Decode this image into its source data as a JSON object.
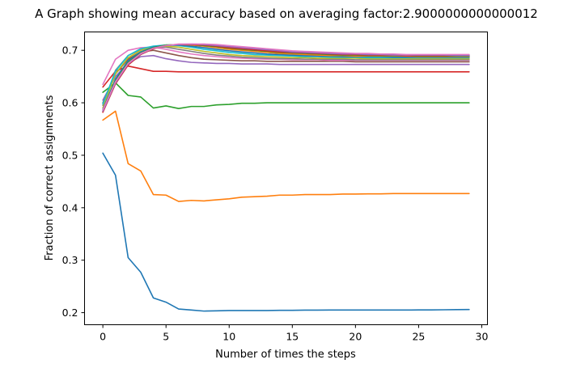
{
  "chart_data": {
    "type": "line",
    "title": "A Graph showing mean accuracy based on averaging factor:2.9000000000000012",
    "xlabel": "Number of times the steps",
    "ylabel": "Fraction of correct assignments",
    "xlim": [
      -1.45,
      30.45
    ],
    "ylim": [
      0.177,
      0.735
    ],
    "xticks": [
      0,
      5,
      10,
      15,
      20,
      25,
      30
    ],
    "yticks": [
      0.2,
      0.3,
      0.4,
      0.5,
      0.6,
      0.7
    ],
    "xtick_labels": [
      "0",
      "5",
      "10",
      "15",
      "20",
      "25",
      "30"
    ],
    "ytick_labels": [
      "0.2",
      "0.3",
      "0.4",
      "0.5",
      "0.6",
      "0.7"
    ],
    "grid": false,
    "legend": "none",
    "x": [
      0,
      1,
      2,
      3,
      4,
      5,
      6,
      7,
      8,
      9,
      10,
      11,
      12,
      13,
      14,
      15,
      16,
      17,
      18,
      19,
      20,
      21,
      22,
      23,
      24,
      25,
      26,
      27,
      28,
      29
    ],
    "series": [
      {
        "color": "#1f77b4",
        "values": [
          0.504,
          0.462,
          0.305,
          0.277,
          0.228,
          0.22,
          0.207,
          0.205,
          0.203,
          0.2035,
          0.204,
          0.204,
          0.204,
          0.204,
          0.2045,
          0.2045,
          0.2048,
          0.2048,
          0.205,
          0.205,
          0.205,
          0.205,
          0.205,
          0.205,
          0.205,
          0.2052,
          0.2053,
          0.2055,
          0.2058,
          0.206
        ]
      },
      {
        "color": "#ff7f0e",
        "values": [
          0.567,
          0.584,
          0.484,
          0.47,
          0.425,
          0.424,
          0.412,
          0.414,
          0.413,
          0.415,
          0.417,
          0.42,
          0.421,
          0.422,
          0.424,
          0.424,
          0.425,
          0.425,
          0.425,
          0.426,
          0.426,
          0.4265,
          0.4265,
          0.427,
          0.427,
          0.427,
          0.427,
          0.427,
          0.427,
          0.427
        ]
      },
      {
        "color": "#2ca02c",
        "values": [
          0.62,
          0.638,
          0.614,
          0.611,
          0.59,
          0.594,
          0.589,
          0.593,
          0.593,
          0.596,
          0.597,
          0.599,
          0.599,
          0.6,
          0.6,
          0.6,
          0.6,
          0.6,
          0.6,
          0.6,
          0.6,
          0.6,
          0.6,
          0.6,
          0.6,
          0.6,
          0.6,
          0.6,
          0.6,
          0.6
        ]
      },
      {
        "color": "#d62728",
        "values": [
          0.63,
          0.66,
          0.67,
          0.665,
          0.66,
          0.66,
          0.659,
          0.659,
          0.659,
          0.659,
          0.659,
          0.659,
          0.659,
          0.659,
          0.659,
          0.659,
          0.659,
          0.659,
          0.659,
          0.659,
          0.659,
          0.659,
          0.659,
          0.659,
          0.659,
          0.659,
          0.659,
          0.659,
          0.659,
          0.659
        ]
      },
      {
        "color": "#9467bd",
        "values": [
          0.605,
          0.65,
          0.676,
          0.688,
          0.69,
          0.684,
          0.68,
          0.677,
          0.676,
          0.675,
          0.675,
          0.674,
          0.674,
          0.674,
          0.673,
          0.673,
          0.673,
          0.673,
          0.673,
          0.673,
          0.673,
          0.673,
          0.673,
          0.673,
          0.673,
          0.673,
          0.673,
          0.673,
          0.673,
          0.673
        ]
      },
      {
        "color": "#8c564b",
        "values": [
          0.6,
          0.655,
          0.683,
          0.697,
          0.7,
          0.695,
          0.69,
          0.686,
          0.683,
          0.682,
          0.681,
          0.68,
          0.68,
          0.679,
          0.679,
          0.679,
          0.679,
          0.679,
          0.679,
          0.679,
          0.678,
          0.678,
          0.678,
          0.678,
          0.678,
          0.678,
          0.678,
          0.678,
          0.678,
          0.678
        ]
      },
      {
        "color": "#e377c2",
        "values": [
          0.635,
          0.683,
          0.7,
          0.705,
          0.706,
          0.702,
          0.697,
          0.693,
          0.69,
          0.688,
          0.686,
          0.685,
          0.684,
          0.683,
          0.683,
          0.682,
          0.682,
          0.682,
          0.681,
          0.681,
          0.681,
          0.681,
          0.681,
          0.681,
          0.681,
          0.681,
          0.681,
          0.681,
          0.681,
          0.681
        ]
      },
      {
        "color": "#7f7f7f",
        "values": [
          0.595,
          0.662,
          0.69,
          0.702,
          0.706,
          0.706,
          0.702,
          0.698,
          0.694,
          0.691,
          0.689,
          0.687,
          0.686,
          0.685,
          0.684,
          0.684,
          0.683,
          0.683,
          0.683,
          0.683,
          0.682,
          0.682,
          0.682,
          0.682,
          0.682,
          0.682,
          0.682,
          0.682,
          0.682,
          0.682
        ]
      },
      {
        "color": "#bcbd22",
        "values": [
          0.59,
          0.655,
          0.686,
          0.7,
          0.707,
          0.708,
          0.706,
          0.702,
          0.698,
          0.695,
          0.692,
          0.69,
          0.689,
          0.688,
          0.687,
          0.686,
          0.686,
          0.685,
          0.685,
          0.685,
          0.685,
          0.684,
          0.684,
          0.684,
          0.684,
          0.684,
          0.684,
          0.684,
          0.684,
          0.684
        ]
      },
      {
        "color": "#17becf",
        "values": [
          0.598,
          0.66,
          0.69,
          0.703,
          0.708,
          0.71,
          0.709,
          0.706,
          0.702,
          0.699,
          0.696,
          0.694,
          0.692,
          0.691,
          0.69,
          0.689,
          0.688,
          0.688,
          0.687,
          0.687,
          0.687,
          0.686,
          0.686,
          0.686,
          0.686,
          0.686,
          0.686,
          0.686,
          0.686,
          0.686
        ]
      },
      {
        "color": "#1f77b4",
        "values": [
          0.587,
          0.645,
          0.68,
          0.697,
          0.706,
          0.71,
          0.71,
          0.708,
          0.705,
          0.702,
          0.699,
          0.697,
          0.695,
          0.693,
          0.692,
          0.691,
          0.69,
          0.689,
          0.689,
          0.688,
          0.688,
          0.688,
          0.688,
          0.687,
          0.687,
          0.687,
          0.687,
          0.687,
          0.687,
          0.687
        ]
      },
      {
        "color": "#ff7f0e",
        "values": [
          0.583,
          0.64,
          0.675,
          0.694,
          0.704,
          0.709,
          0.711,
          0.71,
          0.708,
          0.705,
          0.702,
          0.7,
          0.698,
          0.696,
          0.694,
          0.693,
          0.692,
          0.691,
          0.69,
          0.69,
          0.689,
          0.689,
          0.689,
          0.689,
          0.689,
          0.688,
          0.688,
          0.688,
          0.688,
          0.688
        ]
      },
      {
        "color": "#2ca02c",
        "values": [
          0.585,
          0.642,
          0.677,
          0.695,
          0.705,
          0.71,
          0.711,
          0.711,
          0.709,
          0.707,
          0.704,
          0.702,
          0.7,
          0.698,
          0.696,
          0.695,
          0.694,
          0.693,
          0.692,
          0.691,
          0.691,
          0.69,
          0.69,
          0.69,
          0.69,
          0.689,
          0.689,
          0.689,
          0.689,
          0.689
        ]
      },
      {
        "color": "#d62728",
        "values": [
          0.582,
          0.636,
          0.672,
          0.692,
          0.703,
          0.709,
          0.711,
          0.711,
          0.71,
          0.708,
          0.705,
          0.703,
          0.701,
          0.699,
          0.697,
          0.696,
          0.695,
          0.694,
          0.693,
          0.692,
          0.692,
          0.691,
          0.691,
          0.691,
          0.69,
          0.69,
          0.69,
          0.69,
          0.69,
          0.69
        ]
      },
      {
        "color": "#9467bd",
        "values": [
          0.584,
          0.638,
          0.674,
          0.693,
          0.704,
          0.709,
          0.711,
          0.712,
          0.711,
          0.709,
          0.707,
          0.705,
          0.703,
          0.701,
          0.699,
          0.697,
          0.696,
          0.695,
          0.694,
          0.693,
          0.693,
          0.692,
          0.692,
          0.691,
          0.691,
          0.691,
          0.691,
          0.691,
          0.69,
          0.69
        ]
      },
      {
        "color": "#e377c2",
        "values": [
          0.586,
          0.64,
          0.675,
          0.694,
          0.704,
          0.709,
          0.712,
          0.712,
          0.712,
          0.711,
          0.709,
          0.707,
          0.705,
          0.703,
          0.701,
          0.699,
          0.698,
          0.697,
          0.696,
          0.695,
          0.694,
          0.694,
          0.693,
          0.693,
          0.692,
          0.692,
          0.692,
          0.692,
          0.692,
          0.692
        ]
      }
    ]
  }
}
